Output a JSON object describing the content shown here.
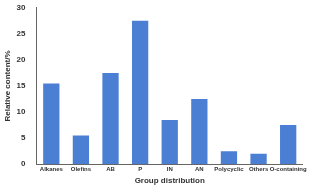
{
  "chart_data": {
    "type": "bar",
    "x_label": "Group distribution",
    "y_label": "Relative content/%",
    "categories": [
      "Alkanes",
      "Olefins",
      "AB",
      "P",
      "IN",
      "AN",
      "Polycyclic",
      "Others",
      "O-containing"
    ],
    "values": [
      15.5,
      5.5,
      17.5,
      27.5,
      8.5,
      12.5,
      2.5,
      2,
      7.5
    ],
    "color": "#4a7fd4",
    "ylim": [
      0,
      30
    ],
    "yticks": [
      0,
      5,
      10,
      15,
      20,
      25,
      30
    ],
    "grid": false
  }
}
